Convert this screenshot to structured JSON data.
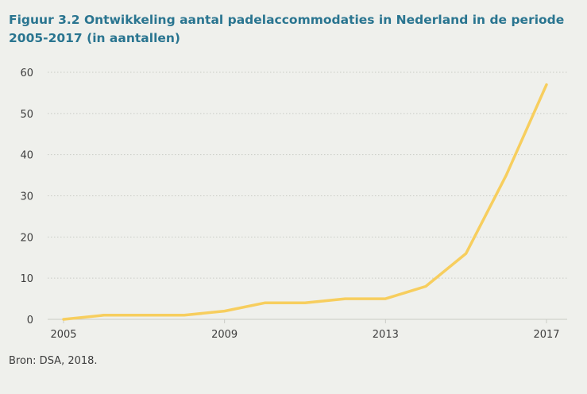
{
  "figure": {
    "title": "Figuur 3.2 Ontwikkeling aantal padelaccommodaties in Nederland in de periode 2005-2017 (in aantallen)",
    "source": "Bron: DSA, 2018."
  },
  "chart_data": {
    "type": "line",
    "title": "Figuur 3.2 Ontwikkeling aantal padelaccommodaties in Nederland in de periode 2005-2017 (in aantallen)",
    "xlabel": "",
    "ylabel": "",
    "x": [
      2005,
      2006,
      2007,
      2008,
      2009,
      2010,
      2011,
      2012,
      2013,
      2014,
      2015,
      2016,
      2017
    ],
    "series": [
      {
        "values": [
          0,
          1,
          1,
          1,
          2,
          4,
          4,
          5,
          5,
          8,
          16,
          35,
          57
        ]
      }
    ],
    "xlim": [
      2005,
      2017
    ],
    "ylim": [
      0,
      60
    ],
    "yticks": [
      0,
      10,
      20,
      30,
      40,
      50,
      60
    ],
    "xticks": [
      2005,
      2009,
      2013,
      2017
    ],
    "grid": "horizontal-dotted",
    "legend": "none",
    "line_color": "#f7ce5e",
    "grid_color": "#c9cbc5"
  }
}
